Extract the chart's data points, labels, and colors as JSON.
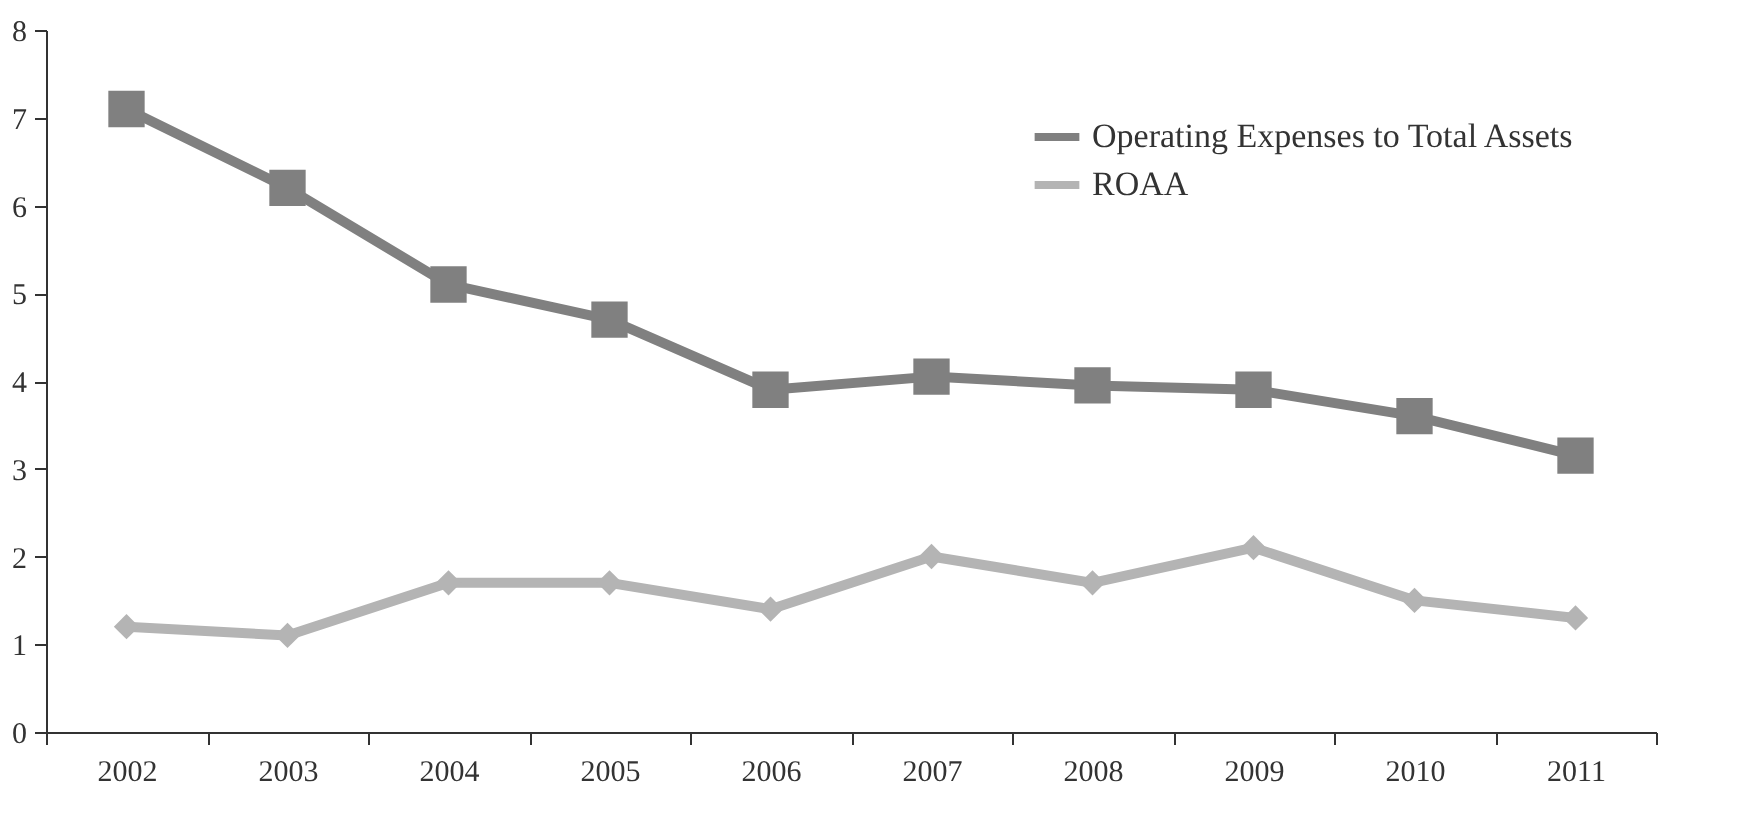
{
  "chart_data": {
    "type": "line",
    "categories": [
      "2002",
      "2003",
      "2004",
      "2005",
      "2006",
      "2007",
      "2008",
      "2009",
      "2010",
      "2011"
    ],
    "series": [
      {
        "name": "Operating Expenses to Total Assets",
        "color": "#808080",
        "marker": "square",
        "values": [
          7.1,
          6.2,
          5.1,
          4.7,
          3.9,
          4.05,
          3.95,
          3.9,
          3.6,
          3.15
        ]
      },
      {
        "name": "ROAA",
        "color": "#b4b4b4",
        "marker": "diamond",
        "values": [
          1.2,
          1.1,
          1.7,
          1.7,
          1.4,
          2.0,
          1.7,
          2.1,
          1.5,
          1.3
        ]
      }
    ],
    "ylim": [
      0,
      8
    ],
    "yticks": [
      0,
      1,
      2,
      3,
      4,
      5,
      6,
      7,
      8
    ],
    "grid": false,
    "legend": "top right"
  }
}
